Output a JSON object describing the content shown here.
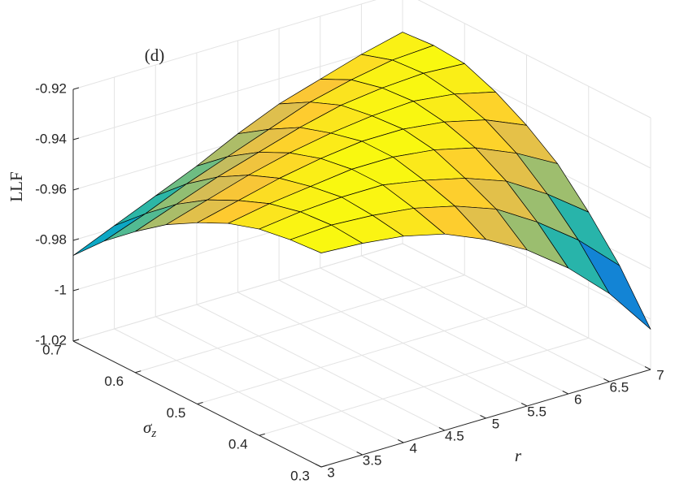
{
  "chart_data": {
    "type": "surface",
    "title": "(d)",
    "xlabel": "r",
    "ylabel": "σ",
    "ylabel_subscript": "z",
    "zlabel": "LLF",
    "x": [
      3,
      3.5,
      4,
      4.5,
      5,
      5.5,
      6,
      6.5,
      7
    ],
    "y": [
      0.3,
      0.35,
      0.4,
      0.45,
      0.5,
      0.55,
      0.6,
      0.65,
      0.7
    ],
    "z": [
      [
        -0.935,
        -0.936,
        -0.938,
        -0.942,
        -0.948,
        -0.955,
        -0.964,
        -0.974,
        -0.986
      ],
      [
        -0.936,
        -0.935,
        -0.936,
        -0.939,
        -0.944,
        -0.95,
        -0.958,
        -0.968,
        -0.979
      ],
      [
        -0.938,
        -0.936,
        -0.935,
        -0.937,
        -0.94,
        -0.945,
        -0.952,
        -0.961,
        -0.972
      ],
      [
        -0.942,
        -0.938,
        -0.935,
        -0.935,
        -0.937,
        -0.941,
        -0.947,
        -0.955,
        -0.965
      ],
      [
        -0.949,
        -0.942,
        -0.938,
        -0.935,
        -0.935,
        -0.938,
        -0.942,
        -0.949,
        -0.957
      ],
      [
        -0.958,
        -0.948,
        -0.942,
        -0.937,
        -0.935,
        -0.936,
        -0.938,
        -0.943,
        -0.95
      ],
      [
        -0.97,
        -0.958,
        -0.948,
        -0.941,
        -0.937,
        -0.935,
        -0.936,
        -0.939,
        -0.945
      ],
      [
        -0.985,
        -0.97,
        -0.958,
        -0.948,
        -0.941,
        -0.937,
        -0.935,
        -0.936,
        -0.94
      ],
      [
        -1.004,
        -0.985,
        -0.97,
        -0.957,
        -0.948,
        -0.941,
        -0.936,
        -0.935,
        -0.936
      ]
    ],
    "xlim": [
      3,
      7
    ],
    "ylim": [
      0.3,
      0.7
    ],
    "zlim": [
      -1.02,
      -0.92
    ],
    "xticks": [
      3,
      3.5,
      4,
      4.5,
      5,
      5.5,
      6,
      6.5,
      7
    ],
    "yticks": [
      0.3,
      0.4,
      0.5,
      0.6,
      0.7
    ],
    "zticks": [
      -1.02,
      -1,
      -0.98,
      -0.96,
      -0.94,
      -0.92
    ],
    "colormap": [
      "#352a87",
      "#0f5cdd",
      "#1481d6",
      "#06a4ca",
      "#2eb7a4",
      "#87bf77",
      "#d1bb59",
      "#fec832",
      "#f9fb0e"
    ],
    "grid": true
  }
}
